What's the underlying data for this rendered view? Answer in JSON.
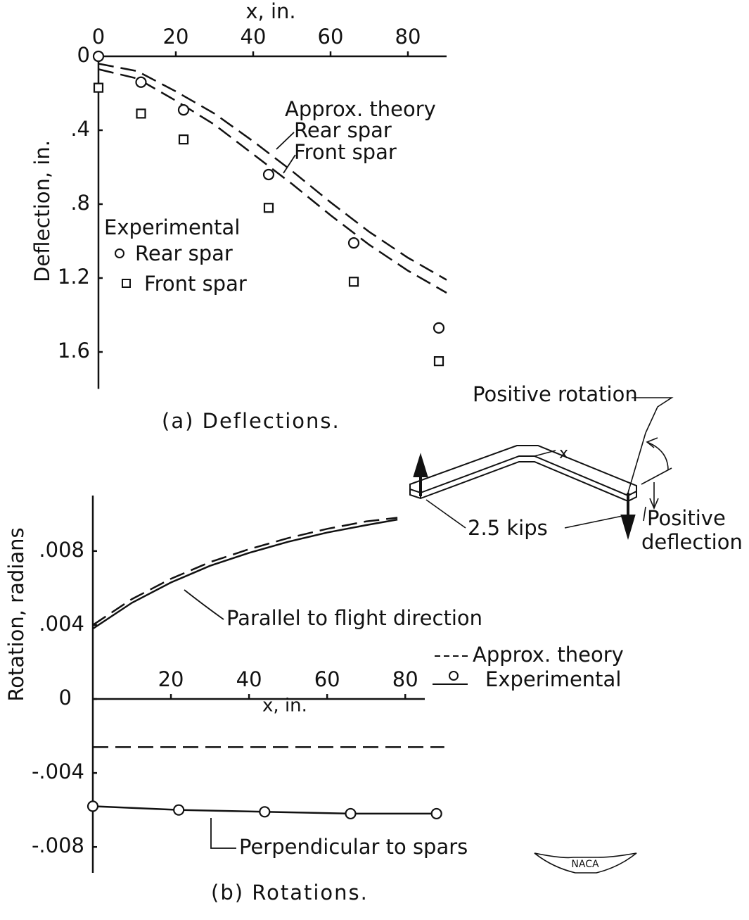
{
  "chart_data": [
    {
      "type": "line",
      "xlabel": "x, in.",
      "ylabel": "Deflection, in.",
      "caption": "(a) Deflections.",
      "x_axis_position": "top",
      "y_inverted": true,
      "xlim": [
        0,
        90
      ],
      "ylim": [
        0,
        1.8
      ],
      "xticks": [
        0,
        20,
        40,
        60,
        80
      ],
      "yticks": [
        0,
        {
          "value": 0.4,
          "label": ".4"
        },
        {
          "value": 0.8,
          "label": ".8"
        },
        1.2,
        1.6
      ],
      "theory_label": "Approx. theory",
      "experimental_label": "Experimental",
      "series": [
        {
          "name": "Rear spar",
          "color": "#111111",
          "dash": true,
          "x": [
            0,
            10,
            20,
            30,
            40,
            50,
            60,
            70,
            80,
            90
          ],
          "values": [
            0.04,
            0.08,
            0.19,
            0.31,
            0.46,
            0.62,
            0.79,
            0.95,
            1.09,
            1.21
          ]
        },
        {
          "name": "Front spar",
          "color": "#111111",
          "dash": true,
          "x": [
            0,
            10,
            20,
            30,
            40,
            50,
            60,
            70,
            80,
            90
          ],
          "values": [
            0.07,
            0.12,
            0.24,
            0.37,
            0.53,
            0.69,
            0.86,
            1.02,
            1.16,
            1.28
          ]
        },
        {
          "name": "Rear spar",
          "color": "#111111",
          "marker": "circle",
          "line": false,
          "x": [
            0,
            11,
            22,
            44,
            66,
            88
          ],
          "values": [
            0,
            0.14,
            0.29,
            0.64,
            1.01,
            1.47
          ]
        },
        {
          "name": "Front spar",
          "color": "#111111",
          "marker": "square",
          "line": false,
          "x": [
            0,
            11,
            22,
            44,
            66,
            88
          ],
          "values": [
            0.17,
            0.31,
            0.45,
            0.82,
            1.22,
            1.65
          ]
        }
      ]
    },
    {
      "type": "line",
      "xlabel": "x, in.",
      "ylabel": "Rotation, radians",
      "caption": "(b) Rotations.",
      "xlim": [
        0,
        85
      ],
      "ylim": [
        -0.0094,
        0.011
      ],
      "xticks": [
        20,
        40,
        60,
        80
      ],
      "yticks": [
        {
          "value": -0.008,
          "label": "-.008"
        },
        {
          "value": -0.004,
          "label": "-.004"
        },
        0,
        {
          "value": 0.004,
          "label": ".004"
        },
        {
          "value": 0.008,
          "label": ".008"
        }
      ],
      "legend": [
        "Approx. theory",
        "Experimental"
      ],
      "annotations": [
        "Parallel to flight direction",
        "Perpendicular to spars"
      ],
      "series": [
        {
          "color": "#111111",
          "dash": true,
          "x": [
            0,
            10,
            20,
            30,
            40,
            50,
            60,
            70,
            78
          ],
          "values": [
            0.004,
            0.0054,
            0.0065,
            0.0074,
            0.0081,
            0.0087,
            0.0092,
            0.0096,
            0.0098
          ]
        },
        {
          "color": "#111111",
          "dash": false,
          "x": [
            0,
            10,
            20,
            30,
            40,
            50,
            60,
            70,
            78
          ],
          "values": [
            0.0038,
            0.0052,
            0.0063,
            0.0072,
            0.0079,
            0.0085,
            0.009,
            0.0094,
            0.0097
          ]
        },
        {
          "color": "#111111",
          "dash": true,
          "x": [
            0,
            90
          ],
          "values": [
            -0.0026,
            -0.0026
          ]
        },
        {
          "color": "#111111",
          "dash": false,
          "marker": "circle",
          "x": [
            0,
            22,
            44,
            66,
            88
          ],
          "values": [
            -0.0058,
            -0.006,
            -0.0061,
            -0.0062,
            -0.0062
          ]
        }
      ]
    }
  ],
  "diagram": {
    "rotation_label": "Positive rotation",
    "load_label": "2.5 kips",
    "deflection_label": [
      "Positive",
      "deflection"
    ],
    "x_label": "x"
  },
  "logo": "NACA"
}
